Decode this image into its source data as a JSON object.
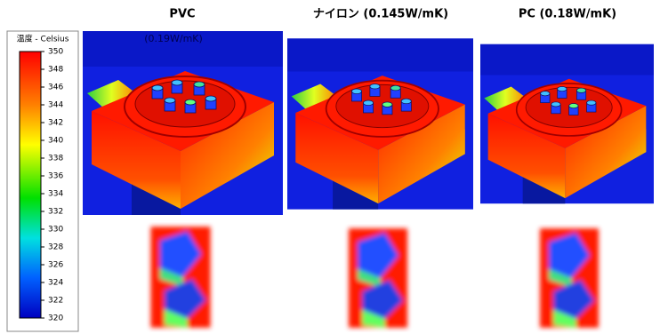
{
  "colorbar": {
    "title": "温度 - Celsius",
    "ticks": [
      350,
      348,
      346,
      344,
      342,
      340,
      338,
      336,
      334,
      332,
      330,
      328,
      326,
      324,
      322,
      320
    ]
  },
  "panels": [
    {
      "title": "PVC",
      "subtitle": "(0.19W/mK)"
    },
    {
      "title": "ナイロン (0.145W/mK)"
    },
    {
      "title": "PC  (0.18W/mK)"
    }
  ]
}
